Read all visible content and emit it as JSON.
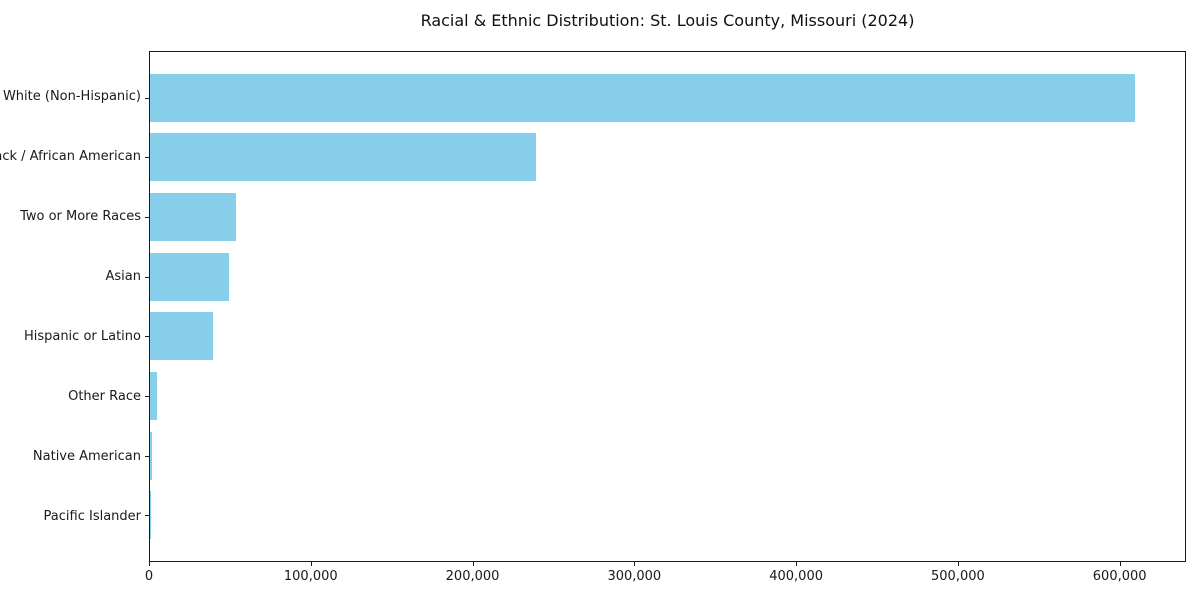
{
  "chart_data": {
    "type": "bar",
    "orientation": "horizontal",
    "title": "Racial & Ethnic Distribution: St. Louis County, Missouri (2024)",
    "categories": [
      "White (Non-Hispanic)",
      "Black / African American",
      "Two or More Races",
      "Asian",
      "Hispanic or Latino",
      "Other Race",
      "Native American",
      "Pacific Islander"
    ],
    "values": [
      610000,
      239000,
      53000,
      49000,
      39000,
      4500,
      1000,
      300
    ],
    "xlabel": "",
    "ylabel": "",
    "xlim": [
      0,
      641000
    ],
    "x_ticks": [
      0,
      100000,
      200000,
      300000,
      400000,
      500000,
      600000
    ],
    "x_tick_labels": [
      "0",
      "100,000",
      "200,000",
      "300,000",
      "400,000",
      "500,000",
      "600,000"
    ],
    "bar_color": "#87CEEB",
    "axis_color": "#1a1a1a",
    "background_color": "#ffffff",
    "grid": false,
    "legend": "none"
  }
}
